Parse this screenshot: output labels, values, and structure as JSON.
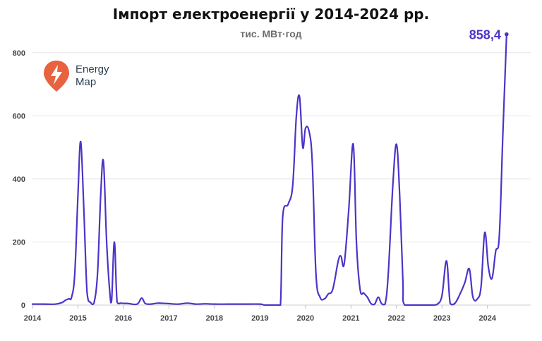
{
  "title": "Імпорт електроенергії у 2014-2024 рр.",
  "subtitle": "тис. МВт·год",
  "logo": {
    "line1": "Energy",
    "line2": "Map"
  },
  "colors": {
    "line": "#4a35c8",
    "grid": "#e6e6e6",
    "logo": "#e8623f"
  },
  "chart_data": {
    "type": "line",
    "title": "Імпорт електроенергії у 2014-2024 рр.",
    "subtitle": "тис. МВт·год",
    "xlabel": "",
    "ylabel": "",
    "ylim": [
      0,
      900
    ],
    "xlim": [
      2014.0,
      2024.95
    ],
    "y_ticks": [
      0,
      200,
      400,
      600,
      800
    ],
    "y_tick_labels": [
      "0",
      "200",
      "400",
      "600",
      "800"
    ],
    "x_ticks": [
      2014,
      2015,
      2016,
      2017,
      2018,
      2019,
      2020,
      2021,
      2022,
      2023,
      2024
    ],
    "x_tick_labels": [
      "2014",
      "2015",
      "2016",
      "2017",
      "2018",
      "2019",
      "2020",
      "2021",
      "2022",
      "2023",
      "2024"
    ],
    "grid": true,
    "last_value_label": "858,4",
    "series": [
      {
        "values": [
          [
            2014.0,
            3
          ],
          [
            2014.25,
            3
          ],
          [
            2014.5,
            3
          ],
          [
            2014.65,
            8
          ],
          [
            2014.72,
            15
          ],
          [
            2014.8,
            20
          ],
          [
            2014.86,
            25
          ],
          [
            2014.93,
            100
          ],
          [
            2015.0,
            350
          ],
          [
            2015.06,
            518
          ],
          [
            2015.13,
            300
          ],
          [
            2015.2,
            40
          ],
          [
            2015.28,
            8
          ],
          [
            2015.35,
            5
          ],
          [
            2015.43,
            100
          ],
          [
            2015.5,
            350
          ],
          [
            2015.56,
            455
          ],
          [
            2015.63,
            200
          ],
          [
            2015.7,
            40
          ],
          [
            2015.74,
            15
          ],
          [
            2015.8,
            200
          ],
          [
            2015.86,
            10
          ],
          [
            2015.95,
            6
          ],
          [
            2016.1,
            5
          ],
          [
            2016.3,
            3
          ],
          [
            2016.4,
            22
          ],
          [
            2016.48,
            5
          ],
          [
            2016.6,
            3
          ],
          [
            2016.75,
            6
          ],
          [
            2016.95,
            5
          ],
          [
            2017.2,
            3
          ],
          [
            2017.4,
            6
          ],
          [
            2017.6,
            3
          ],
          [
            2017.8,
            4
          ],
          [
            2018.0,
            3
          ],
          [
            2018.3,
            3
          ],
          [
            2018.6,
            3
          ],
          [
            2019.0,
            3
          ],
          [
            2019.1,
            0
          ],
          [
            2019.35,
            0
          ],
          [
            2019.45,
            0
          ],
          [
            2019.5,
            280
          ],
          [
            2019.62,
            320
          ],
          [
            2019.72,
            380
          ],
          [
            2019.8,
            600
          ],
          [
            2019.87,
            660
          ],
          [
            2019.94,
            500
          ],
          [
            2020.0,
            560
          ],
          [
            2020.08,
            550
          ],
          [
            2020.15,
            450
          ],
          [
            2020.23,
            100
          ],
          [
            2020.32,
            25
          ],
          [
            2020.42,
            20
          ],
          [
            2020.5,
            35
          ],
          [
            2020.6,
            50
          ],
          [
            2020.72,
            140
          ],
          [
            2020.78,
            155
          ],
          [
            2020.85,
            130
          ],
          [
            2020.95,
            300
          ],
          [
            2021.05,
            510
          ],
          [
            2021.12,
            200
          ],
          [
            2021.2,
            50
          ],
          [
            2021.28,
            38
          ],
          [
            2021.36,
            25
          ],
          [
            2021.44,
            5
          ],
          [
            2021.52,
            3
          ],
          [
            2021.6,
            25
          ],
          [
            2021.67,
            5
          ],
          [
            2021.75,
            3
          ],
          [
            2021.82,
            100
          ],
          [
            2021.92,
            380
          ],
          [
            2022.0,
            510
          ],
          [
            2022.07,
            350
          ],
          [
            2022.14,
            80
          ],
          [
            2022.18,
            0
          ],
          [
            2022.5,
            0
          ],
          [
            2022.8,
            0
          ],
          [
            2022.9,
            3
          ],
          [
            2023.0,
            30
          ],
          [
            2023.1,
            140
          ],
          [
            2023.18,
            5
          ],
          [
            2023.28,
            5
          ],
          [
            2023.38,
            30
          ],
          [
            2023.5,
            70
          ],
          [
            2023.6,
            115
          ],
          [
            2023.68,
            25
          ],
          [
            2023.78,
            20
          ],
          [
            2023.86,
            60
          ],
          [
            2023.94,
            230
          ],
          [
            2024.02,
            120
          ],
          [
            2024.1,
            85
          ],
          [
            2024.18,
            170
          ],
          [
            2024.26,
            220
          ],
          [
            2024.34,
            550
          ],
          [
            2024.42,
            858.4
          ]
        ]
      }
    ]
  }
}
